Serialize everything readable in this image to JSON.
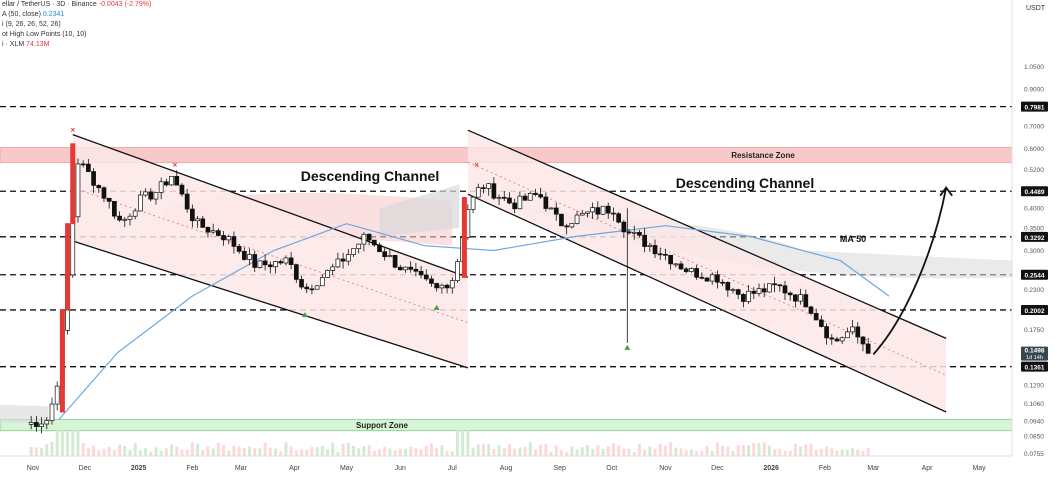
{
  "legend": {
    "title": "ellar / TetherUS · 3D · Binance",
    "change": "-0.0043 (-2.79%)",
    "ma": "A (50, close)",
    "ma_value": "0.2341",
    "ichimoku": "i (9, 26, 26, 52, 26)",
    "pivots": "ot High Low Points (10, 10)",
    "volume": "i · XLM",
    "volume_value": "74.13M"
  },
  "colors": {
    "up": "#2e7d32",
    "down": "#e53935",
    "candle": "#111111",
    "channel_fill": "#fde7e7",
    "resistance_fill": "#f8c9c9",
    "support_fill": "#d6f5d6",
    "ma_line": "#6fa8dc",
    "cloud": "#d9d9d9"
  },
  "annotations": {
    "channel_1": "Descending Channel",
    "channel_2": "Descending Channel",
    "ma50": "MA 50",
    "resistance": "Resistance Zone",
    "support": "Support Zone"
  },
  "chart_data": {
    "type": "candlestick",
    "title": "",
    "y_unit": "USDT",
    "y_scale": "log",
    "ylim": [
      0.0755,
      1.2
    ],
    "x_labels": [
      "Nov",
      "Dec",
      "2025",
      "Feb",
      "Mar",
      "Apr",
      "May",
      "Jun",
      "Jul",
      "Aug",
      "Sep",
      "Oct",
      "Nov",
      "Dec",
      "2026",
      "Feb",
      "Mar",
      "Apr",
      "May"
    ],
    "y_ticks": [
      1.05,
      0.9,
      0.7,
      0.6,
      0.52,
      0.4,
      0.35,
      0.3,
      0.23,
      0.175,
      0.15,
      0.12,
      0.106,
      0.094,
      0.085,
      0.0755
    ],
    "price_levels": [
      {
        "label": "0.7981",
        "value": 0.7981
      },
      {
        "label": "0.4489",
        "value": 0.4489
      },
      {
        "label": "0.3292",
        "value": 0.3292
      },
      {
        "label": "0.2544",
        "value": 0.2544
      },
      {
        "label": "0.2002",
        "value": 0.2002
      },
      {
        "label": "0.1361",
        "value": 0.1361
      }
    ],
    "current_price": {
      "label": "0.1498",
      "countdown": "1d 14h",
      "value": 0.1498
    },
    "resistance_zone": [
      0.545,
      0.605
    ],
    "support_zone": [
      0.088,
      0.095
    ],
    "close_series": [
      {
        "date": "2024-10-28",
        "close": 0.092
      },
      {
        "date": "2024-11-10",
        "close": 0.095
      },
      {
        "date": "2024-11-16",
        "close": 0.13
      },
      {
        "date": "2024-11-20",
        "close": 0.22
      },
      {
        "date": "2024-11-24",
        "close": 0.38
      },
      {
        "date": "2024-11-27",
        "close": 0.55
      },
      {
        "date": "2024-12-04",
        "close": 0.5
      },
      {
        "date": "2024-12-13",
        "close": 0.43
      },
      {
        "date": "2024-12-22",
        "close": 0.36
      },
      {
        "date": "2025-01-01",
        "close": 0.42
      },
      {
        "date": "2025-01-12",
        "close": 0.45
      },
      {
        "date": "2025-01-20",
        "close": 0.5
      },
      {
        "date": "2025-02-03",
        "close": 0.36
      },
      {
        "date": "2025-02-20",
        "close": 0.33
      },
      {
        "date": "2025-03-10",
        "close": 0.27
      },
      {
        "date": "2025-03-28",
        "close": 0.28
      },
      {
        "date": "2025-04-07",
        "close": 0.23
      },
      {
        "date": "2025-04-25",
        "close": 0.27
      },
      {
        "date": "2025-05-12",
        "close": 0.33
      },
      {
        "date": "2025-05-31",
        "close": 0.27
      },
      {
        "date": "2025-06-22",
        "close": 0.23
      },
      {
        "date": "2025-07-02",
        "close": 0.25
      },
      {
        "date": "2025-07-10",
        "close": 0.4
      },
      {
        "date": "2025-07-18",
        "close": 0.47
      },
      {
        "date": "2025-08-05",
        "close": 0.41
      },
      {
        "date": "2025-08-20",
        "close": 0.44
      },
      {
        "date": "2025-09-01",
        "close": 0.36
      },
      {
        "date": "2025-09-20",
        "close": 0.39
      },
      {
        "date": "2025-10-02",
        "close": 0.4
      },
      {
        "date": "2025-10-10",
        "close": 0.34
      },
      {
        "date": "2025-10-28",
        "close": 0.3
      },
      {
        "date": "2025-11-15",
        "close": 0.26
      },
      {
        "date": "2025-12-01",
        "close": 0.25
      },
      {
        "date": "2025-12-15",
        "close": 0.22
      },
      {
        "date": "2026-01-05",
        "close": 0.235
      },
      {
        "date": "2026-01-22",
        "close": 0.21
      },
      {
        "date": "2026-02-06",
        "close": 0.16
      },
      {
        "date": "2026-02-16",
        "close": 0.175
      },
      {
        "date": "2026-02-28",
        "close": 0.1498
      }
    ],
    "ma50": [
      {
        "date": "2024-11-16",
        "value": 0.095
      },
      {
        "date": "2024-12-20",
        "value": 0.15
      },
      {
        "date": "2025-02-01",
        "value": 0.22
      },
      {
        "date": "2025-03-20",
        "value": 0.3
      },
      {
        "date": "2025-05-01",
        "value": 0.36
      },
      {
        "date": "2025-06-15",
        "value": 0.31
      },
      {
        "date": "2025-07-25",
        "value": 0.3
      },
      {
        "date": "2025-09-10",
        "value": 0.33
      },
      {
        "date": "2025-11-01",
        "value": 0.355
      },
      {
        "date": "2025-12-20",
        "value": 0.33
      },
      {
        "date": "2026-02-10",
        "value": 0.28
      },
      {
        "date": "2026-03-10",
        "value": 0.22
      }
    ],
    "projection": [
      {
        "date": "2026-03-01",
        "value": 0.148
      },
      {
        "date": "2026-03-20",
        "value": 0.19
      },
      {
        "date": "2026-04-05",
        "value": 0.3
      },
      {
        "date": "2026-04-12",
        "value": 0.46
      }
    ],
    "channel_1": {
      "upper": [
        {
          "date": "2024-11-24",
          "value": 0.66
        },
        {
          "date": "2025-07-10",
          "value": 0.25
        }
      ],
      "lower": [
        {
          "date": "2024-11-24",
          "value": 0.32
        },
        {
          "date": "2025-07-10",
          "value": 0.135
        }
      ]
    },
    "channel_2": {
      "upper": [
        {
          "date": "2025-07-10",
          "value": 0.68
        },
        {
          "date": "2026-04-12",
          "value": 0.165
        }
      ],
      "lower": [
        {
          "date": "2025-07-10",
          "value": 0.44
        },
        {
          "date": "2026-04-12",
          "value": 0.1
        }
      ]
    },
    "pivot_highs": [
      {
        "date": "2024-11-24",
        "value": 0.66
      },
      {
        "date": "2025-01-22",
        "value": 0.52
      },
      {
        "date": "2025-07-15",
        "value": 0.52
      }
    ],
    "pivot_lows": [
      {
        "date": "2025-04-07",
        "value": 0.2
      },
      {
        "date": "2025-06-22",
        "value": 0.21
      },
      {
        "date": "2025-10-10",
        "value": 0.16
      }
    ]
  }
}
